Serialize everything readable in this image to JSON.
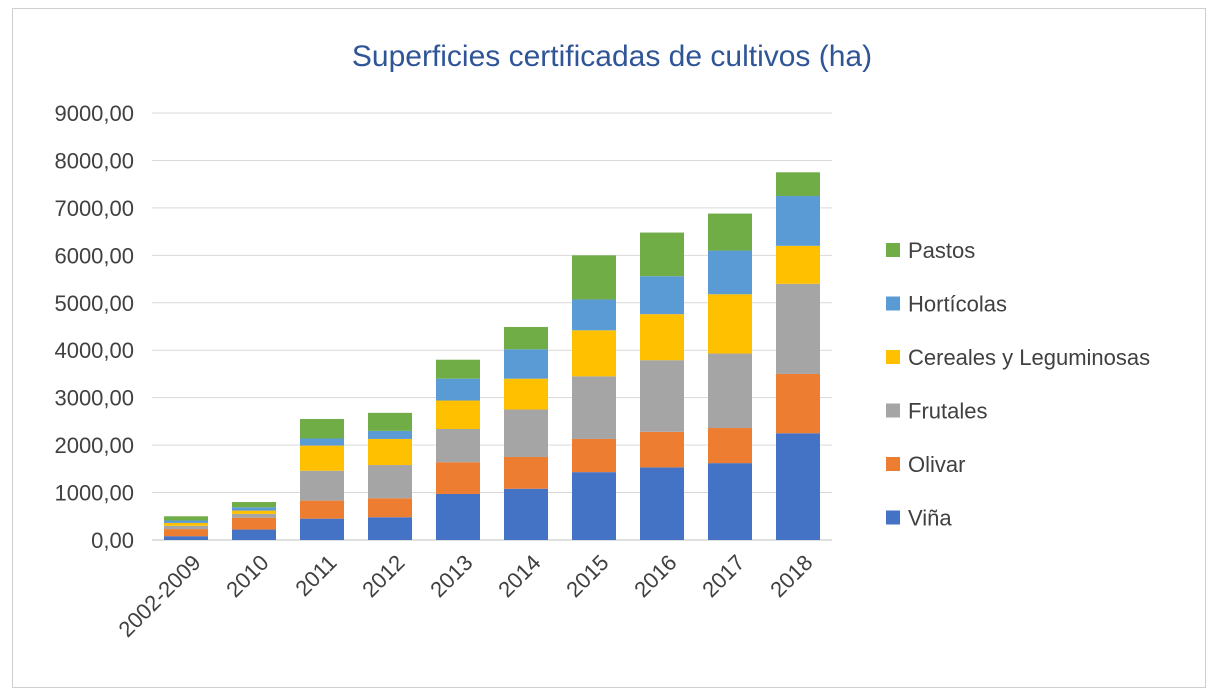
{
  "chart_data": {
    "type": "bar",
    "stacked": true,
    "title": "Superficies certificadas de cultivos (ha)",
    "xlabel": "",
    "ylabel": "",
    "ylim": [
      0,
      9000
    ],
    "yticks": [
      "0,00",
      "1000,00",
      "2000,00",
      "3000,00",
      "4000,00",
      "5000,00",
      "6000,00",
      "7000,00",
      "8000,00",
      "9000,00"
    ],
    "grid": true,
    "legend_position": "right",
    "categories": [
      "2002-2009",
      "2010",
      "2011",
      "2012",
      "2013",
      "2014",
      "2015",
      "2016",
      "2017",
      "2018"
    ],
    "series": [
      {
        "name": "Viña",
        "color": "#4472c4",
        "values": [
          80,
          220,
          450,
          480,
          970,
          1080,
          1430,
          1530,
          1620,
          2250
        ]
      },
      {
        "name": "Olivar",
        "color": "#ed7d31",
        "values": [
          150,
          250,
          380,
          400,
          670,
          670,
          700,
          750,
          740,
          1250
        ]
      },
      {
        "name": "Frutales",
        "color": "#a5a5a5",
        "values": [
          70,
          80,
          630,
          700,
          700,
          1000,
          1320,
          1510,
          1570,
          1900
        ]
      },
      {
        "name": "Cereales y Leguminosas",
        "color": "#ffc000",
        "values": [
          60,
          70,
          530,
          550,
          600,
          650,
          970,
          970,
          1250,
          800
        ]
      },
      {
        "name": "Hortícolas",
        "color": "#5b9bd5",
        "values": [
          50,
          70,
          150,
          170,
          460,
          620,
          650,
          800,
          920,
          1050
        ]
      },
      {
        "name": "Pastos",
        "color": "#70ad47",
        "values": [
          90,
          110,
          410,
          380,
          400,
          470,
          930,
          920,
          780,
          500
        ]
      }
    ]
  }
}
